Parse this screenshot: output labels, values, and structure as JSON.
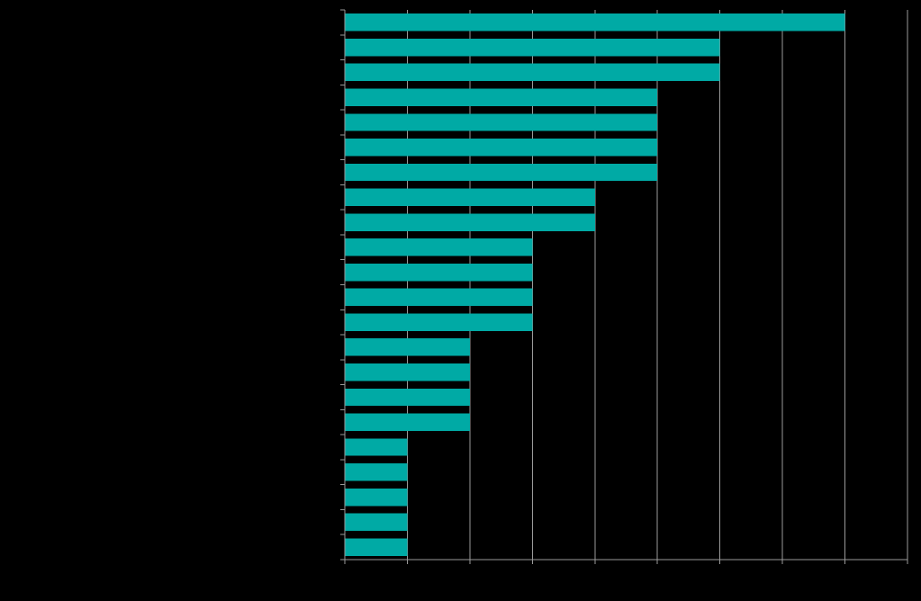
{
  "chart_data": {
    "type": "bar",
    "orientation": "horizontal",
    "categories": [
      "",
      "",
      "",
      "",
      "",
      "",
      "",
      "",
      "",
      "",
      "",
      "",
      "",
      "",
      "",
      "",
      "",
      "",
      "",
      "",
      "",
      ""
    ],
    "values": [
      8,
      6,
      6,
      5,
      5,
      5,
      5,
      4,
      4,
      3,
      3,
      3,
      3,
      2,
      2,
      2,
      2,
      1,
      1,
      1,
      1,
      1
    ],
    "title": "",
    "xlabel": "",
    "ylabel": "",
    "xlim": [
      0,
      9
    ],
    "xtick_step": 1,
    "grid": true,
    "legend": "none",
    "bar_color": "#00AAA5",
    "background_color": "#000000",
    "grid_color": "#9A9A9A",
    "axis_color": "#9A9A9A"
  }
}
